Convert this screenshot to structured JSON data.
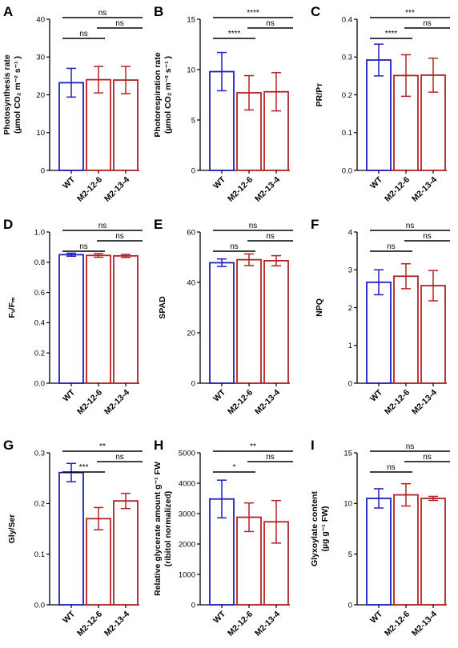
{
  "chart_data": [
    {
      "panel": "A",
      "type": "bar",
      "categories": [
        "WT",
        "M2-12-6",
        "M2-13-4"
      ],
      "values": [
        23.2,
        24.0,
        23.9
      ],
      "errors": [
        3.8,
        3.5,
        3.6
      ],
      "colors": [
        "#1f1fbf",
        "#b22222",
        "#b22222"
      ],
      "ylim": [
        0,
        40
      ],
      "yticks": [
        "0",
        "10",
        "20",
        "30",
        "40"
      ],
      "ylabel_lines": [
        "Photosynthesis rate",
        "(µmol CO₂ m⁻² s⁻¹ )"
      ],
      "sig": [
        {
          "from": 0,
          "to": 1,
          "label": "ns",
          "level": 1
        },
        {
          "from": 1,
          "to": 2,
          "label": "ns",
          "level": 2
        },
        {
          "from": 0,
          "to": 2,
          "label": "ns",
          "level": 3
        }
      ]
    },
    {
      "panel": "B",
      "type": "bar",
      "categories": [
        "WT",
        "M2-12-6",
        "M2-13-4"
      ],
      "values": [
        9.8,
        7.7,
        7.8
      ],
      "errors": [
        1.9,
        1.7,
        1.9
      ],
      "colors": [
        "#1f1fbf",
        "#b22222",
        "#b22222"
      ],
      "ylim": [
        0,
        15
      ],
      "yticks": [
        "0",
        "5",
        "10",
        "15"
      ],
      "ylabel_lines": [
        "Photorespiration rate",
        "(µmol CO₂ m⁻² s⁻¹ )"
      ],
      "sig": [
        {
          "from": 0,
          "to": 1,
          "label": "****",
          "level": 1
        },
        {
          "from": 1,
          "to": 2,
          "label": "ns",
          "level": 2
        },
        {
          "from": 0,
          "to": 2,
          "label": "****",
          "level": 3
        }
      ]
    },
    {
      "panel": "C",
      "type": "bar",
      "categories": [
        "WT",
        "M2-12-6",
        "M2-13-4"
      ],
      "values": [
        0.292,
        0.251,
        0.252
      ],
      "errors": [
        0.042,
        0.055,
        0.045
      ],
      "colors": [
        "#1f1fbf",
        "#b22222",
        "#b22222"
      ],
      "ylim": [
        0,
        0.4
      ],
      "yticks": [
        "0.0",
        "0.1",
        "0.2",
        "0.3",
        "0.4"
      ],
      "ylabel_lines": [
        "PR/Pᴛ"
      ],
      "sig": [
        {
          "from": 0,
          "to": 1,
          "label": "****",
          "level": 1
        },
        {
          "from": 1,
          "to": 2,
          "label": "ns",
          "level": 2
        },
        {
          "from": 0,
          "to": 2,
          "label": "***",
          "level": 3
        }
      ]
    },
    {
      "panel": "D",
      "type": "bar",
      "categories": [
        "WT",
        "M2-12-6",
        "M2-13-4"
      ],
      "values": [
        0.85,
        0.845,
        0.842
      ],
      "errors": [
        0.01,
        0.012,
        0.01
      ],
      "colors": [
        "#1f1fbf",
        "#b22222",
        "#b22222"
      ],
      "ylim": [
        0,
        1.0
      ],
      "yticks": [
        "0.0",
        "0.2",
        "0.4",
        "0.6",
        "0.8",
        "1.0"
      ],
      "ylabel_lines": [
        "Fᵥ/Fₘ"
      ],
      "sig": [
        {
          "from": 0,
          "to": 1,
          "label": "ns",
          "level": 1
        },
        {
          "from": 1,
          "to": 2,
          "label": "ns",
          "level": 2
        },
        {
          "from": 0,
          "to": 2,
          "label": "ns",
          "level": 3
        }
      ]
    },
    {
      "panel": "E",
      "type": "bar",
      "categories": [
        "WT",
        "M2-12-6",
        "M2-13-4"
      ],
      "values": [
        47.8,
        49.0,
        48.6
      ],
      "errors": [
        1.5,
        2.3,
        2.0
      ],
      "colors": [
        "#1f1fbf",
        "#b22222",
        "#b22222"
      ],
      "ylim": [
        0,
        60
      ],
      "yticks": [
        "0",
        "20",
        "40",
        "60"
      ],
      "ylabel_lines": [
        "SPAD"
      ],
      "sig": [
        {
          "from": 0,
          "to": 1,
          "label": "ns",
          "level": 1
        },
        {
          "from": 1,
          "to": 2,
          "label": "ns",
          "level": 2
        },
        {
          "from": 0,
          "to": 2,
          "label": "ns",
          "level": 3
        }
      ]
    },
    {
      "panel": "F",
      "type": "bar",
      "categories": [
        "WT",
        "M2-12-6",
        "M2-13-4"
      ],
      "values": [
        2.67,
        2.83,
        2.58
      ],
      "errors": [
        0.33,
        0.33,
        0.4
      ],
      "colors": [
        "#1f1fbf",
        "#b22222",
        "#b22222"
      ],
      "ylim": [
        0,
        4
      ],
      "yticks": [
        "0",
        "1",
        "2",
        "3",
        "4"
      ],
      "ylabel_lines": [
        "NPQ"
      ],
      "sig": [
        {
          "from": 0,
          "to": 1,
          "label": "ns",
          "level": 1
        },
        {
          "from": 1,
          "to": 2,
          "label": "ns",
          "level": 2
        },
        {
          "from": 0,
          "to": 2,
          "label": "ns",
          "level": 3
        }
      ]
    },
    {
      "panel": "G",
      "type": "bar",
      "categories": [
        "WT",
        "M2-12-6",
        "M2-13-4"
      ],
      "values": [
        0.261,
        0.17,
        0.205
      ],
      "errors": [
        0.018,
        0.022,
        0.015
      ],
      "colors": [
        "#1f1fbf",
        "#b22222",
        "#b22222"
      ],
      "ylim": [
        0,
        0.3
      ],
      "yticks": [
        "0.0",
        "0.1",
        "0.2",
        "0.3"
      ],
      "ylabel_lines": [
        "Gly/Ser"
      ],
      "sig": [
        {
          "from": 0,
          "to": 1,
          "label": "***",
          "level": 1
        },
        {
          "from": 1,
          "to": 2,
          "label": "ns",
          "level": 2
        },
        {
          "from": 0,
          "to": 2,
          "label": "**",
          "level": 3
        }
      ]
    },
    {
      "panel": "H",
      "type": "bar",
      "categories": [
        "WT",
        "M2-12-6",
        "M2-13-4"
      ],
      "values": [
        3480,
        2880,
        2730
      ],
      "errors": [
        620,
        470,
        700
      ],
      "colors": [
        "#1f1fbf",
        "#b22222",
        "#b22222"
      ],
      "ylim": [
        0,
        5000
      ],
      "yticks": [
        "0",
        "1000",
        "2000",
        "3000",
        "4000",
        "5000"
      ],
      "ylabel_lines": [
        "Relative glycerate amount g⁻¹ FW",
        "(ribitol normalized)"
      ],
      "sig": [
        {
          "from": 0,
          "to": 1,
          "label": "*",
          "level": 1
        },
        {
          "from": 1,
          "to": 2,
          "label": "ns",
          "level": 2
        },
        {
          "from": 0,
          "to": 2,
          "label": "**",
          "level": 3
        }
      ]
    },
    {
      "panel": "I",
      "type": "bar",
      "categories": [
        "WT",
        "M2-12-6",
        "M2-13-4"
      ],
      "values": [
        10.5,
        10.85,
        10.5
      ],
      "errors": [
        0.95,
        1.1,
        0.2
      ],
      "colors": [
        "#1f1fbf",
        "#b22222",
        "#b22222"
      ],
      "ylim": [
        0,
        15
      ],
      "yticks": [
        "0",
        "5",
        "10",
        "15"
      ],
      "ylabel_lines": [
        "Glyxoylate content",
        "(µg g⁻¹ FW)"
      ],
      "sig": [
        {
          "from": 0,
          "to": 1,
          "label": "ns",
          "level": 1
        },
        {
          "from": 1,
          "to": 2,
          "label": "ns",
          "level": 2
        },
        {
          "from": 0,
          "to": 2,
          "label": "ns",
          "level": 3
        }
      ]
    }
  ]
}
